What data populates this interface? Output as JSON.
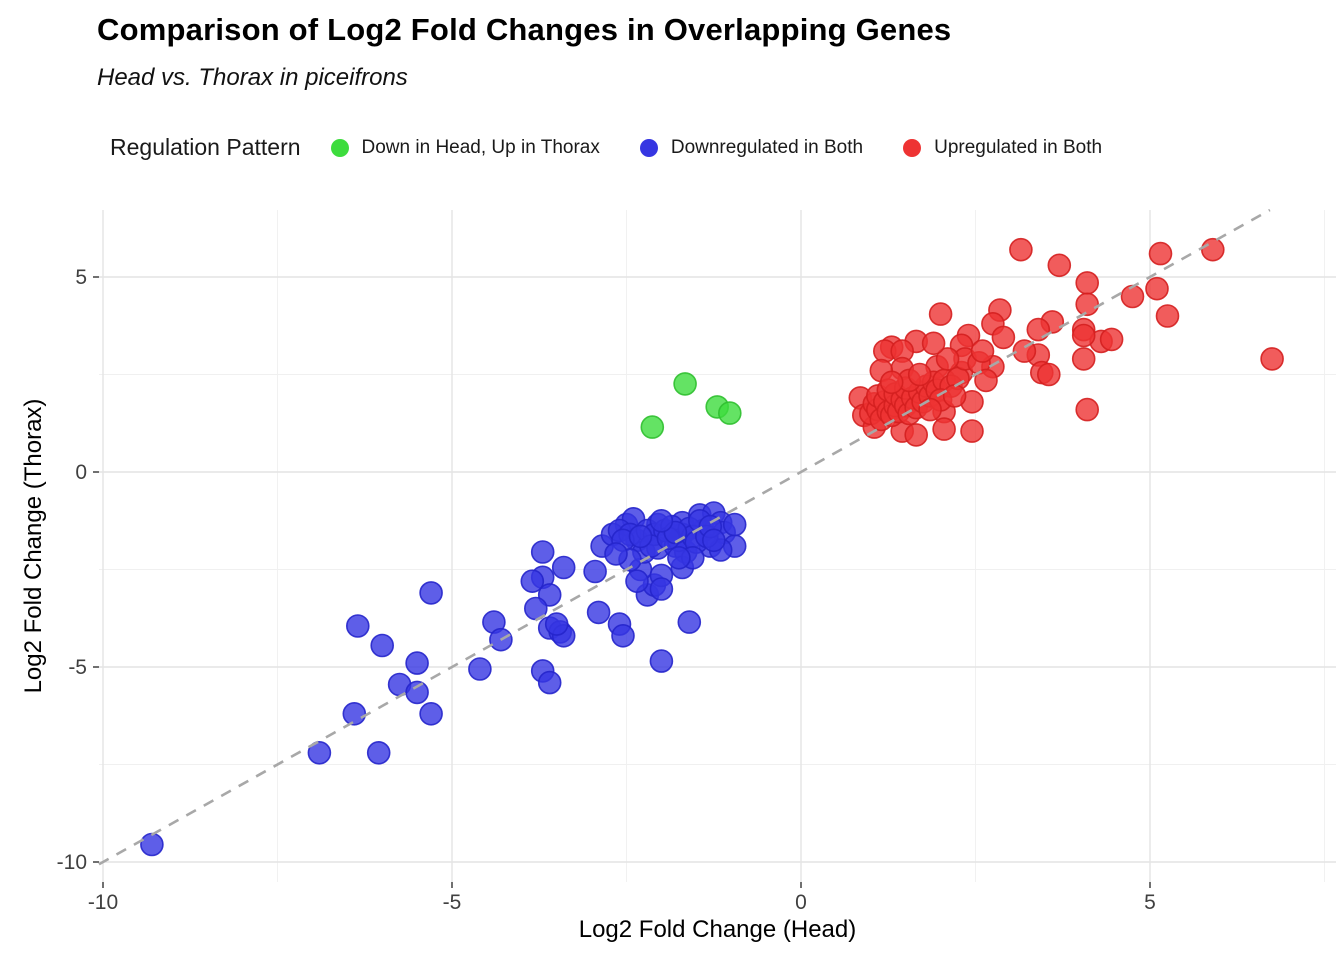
{
  "header": {
    "title": "Comparison of Log2 Fold Changes in Overlapping Genes",
    "subtitle": "Head vs. Thorax in piceifrons"
  },
  "legend": {
    "title": "Regulation Pattern",
    "items": [
      {
        "label": "Down in Head, Up in Thorax",
        "color": "#3ddc3d"
      },
      {
        "label": "Downregulated in Both",
        "color": "#3636e2"
      },
      {
        "label": "Upregulated in Both",
        "color": "#ee3333"
      }
    ]
  },
  "chart_data": {
    "type": "scatter",
    "title": "Comparison of Log2 Fold Changes in Overlapping Genes",
    "subtitle": "Head vs. Thorax in piceifrons",
    "xlabel": "Log2 Fold Change (Head)",
    "ylabel": "Log2 Fold Change (Thorax)",
    "xlim": [
      -10.1,
      7.7
    ],
    "ylim": [
      -10.5,
      6.7
    ],
    "x_ticks": [
      -10,
      -5,
      0,
      5
    ],
    "y_ticks": [
      -10,
      -5,
      0,
      5
    ],
    "x_minor_ticks": [
      -7.5,
      -2.5,
      2.5,
      7.5
    ],
    "y_minor_ticks": [
      -7.5,
      -2.5,
      2.5
    ],
    "grid": true,
    "legend_position": "top",
    "reference_line": {
      "kind": "identity y=x",
      "style": "dashed",
      "color": "#a8a8a8"
    },
    "colors": {
      "major_grid": "#e4e4e4",
      "minor_grid": "#f0f0f0",
      "tick_text": "#404040"
    },
    "series": [
      {
        "name": "Down in Head, Up in Thorax",
        "color": "#3ddc3d",
        "edge": "#2fbf2f",
        "points": [
          [
            -1.66,
            2.26
          ],
          [
            -1.2,
            1.67
          ],
          [
            -1.02,
            1.51
          ],
          [
            -2.13,
            1.15
          ]
        ]
      },
      {
        "name": "Downregulated in Both",
        "color": "#3636e2",
        "edge": "#2525cb",
        "points": [
          [
            -9.3,
            -9.55
          ],
          [
            -6.9,
            -7.2
          ],
          [
            -6.05,
            -7.2
          ],
          [
            -6.4,
            -6.2
          ],
          [
            -5.3,
            -6.2
          ],
          [
            -6.35,
            -3.95
          ],
          [
            -6.0,
            -4.45
          ],
          [
            -5.5,
            -4.9
          ],
          [
            -5.75,
            -5.45
          ],
          [
            -5.5,
            -5.65
          ],
          [
            -5.3,
            -3.1
          ],
          [
            -4.6,
            -5.05
          ],
          [
            -4.4,
            -3.85
          ],
          [
            -4.3,
            -4.3
          ],
          [
            -3.7,
            -2.05
          ],
          [
            -3.7,
            -2.7
          ],
          [
            -3.85,
            -2.8
          ],
          [
            -3.6,
            -3.15
          ],
          [
            -3.8,
            -3.5
          ],
          [
            -3.6,
            -4.0
          ],
          [
            -3.45,
            -4.1
          ],
          [
            -3.7,
            -5.1
          ],
          [
            -3.6,
            -5.4
          ],
          [
            -3.4,
            -4.2
          ],
          [
            -3.5,
            -3.9
          ],
          [
            -2.9,
            -3.6
          ],
          [
            -2.6,
            -3.9
          ],
          [
            -2.55,
            -4.2
          ],
          [
            -2.2,
            -3.15
          ],
          [
            -2.1,
            -2.9
          ],
          [
            -1.6,
            -3.85
          ],
          [
            -2.0,
            -4.85
          ],
          [
            -3.4,
            -2.45
          ],
          [
            -2.95,
            -2.55
          ],
          [
            -2.85,
            -1.9
          ],
          [
            -2.5,
            -1.35
          ],
          [
            -2.4,
            -1.2
          ],
          [
            -2.35,
            -1.75
          ],
          [
            -2.3,
            -2.5
          ],
          [
            -2.25,
            -2.05
          ],
          [
            -2.05,
            -1.95
          ],
          [
            -2.05,
            -1.35
          ],
          [
            -2.0,
            -2.65
          ],
          [
            -2.0,
            -3.0
          ],
          [
            -2.35,
            -2.8
          ],
          [
            -1.7,
            -1.3
          ],
          [
            -1.7,
            -1.6
          ],
          [
            -1.8,
            -1.9
          ],
          [
            -1.65,
            -2.05
          ],
          [
            -1.7,
            -2.45
          ],
          [
            -1.45,
            -1.1
          ],
          [
            -1.4,
            -1.5
          ],
          [
            -1.3,
            -1.9
          ],
          [
            -1.25,
            -1.05
          ],
          [
            -1.15,
            -1.3
          ],
          [
            -1.1,
            -1.55
          ],
          [
            -0.95,
            -1.9
          ],
          [
            -1.15,
            -2.0
          ],
          [
            -0.95,
            -1.35
          ],
          [
            -2.7,
            -1.6
          ],
          [
            -2.6,
            -1.5
          ],
          [
            -2.45,
            -1.6
          ],
          [
            -2.2,
            -1.5
          ],
          [
            -2.1,
            -1.6
          ],
          [
            -1.95,
            -1.5
          ],
          [
            -1.85,
            -1.4
          ],
          [
            -1.75,
            -1.75
          ],
          [
            -1.6,
            -1.45
          ],
          [
            -1.55,
            -1.65
          ],
          [
            -1.5,
            -1.8
          ],
          [
            -1.45,
            -1.25
          ],
          [
            -1.35,
            -1.65
          ],
          [
            -1.3,
            -1.4
          ],
          [
            -2.15,
            -1.9
          ],
          [
            -1.9,
            -1.7
          ],
          [
            -1.8,
            -1.55
          ],
          [
            -2.0,
            -1.25
          ],
          [
            -2.55,
            -1.75
          ],
          [
            -2.3,
            -1.65
          ],
          [
            -1.25,
            -1.75
          ],
          [
            -1.55,
            -2.2
          ],
          [
            -1.75,
            -2.2
          ],
          [
            -2.45,
            -2.25
          ],
          [
            -2.65,
            -2.1
          ]
        ]
      },
      {
        "name": "Upregulated in Both",
        "color": "#ee3333",
        "edge": "#d41f1f",
        "points": [
          [
            3.15,
            5.7
          ],
          [
            3.7,
            5.3
          ],
          [
            5.15,
            5.6
          ],
          [
            5.9,
            5.7
          ],
          [
            4.1,
            4.85
          ],
          [
            4.1,
            4.3
          ],
          [
            5.1,
            4.7
          ],
          [
            4.75,
            4.5
          ],
          [
            5.25,
            4.0
          ],
          [
            2.0,
            4.05
          ],
          [
            3.6,
            3.85
          ],
          [
            3.4,
            3.65
          ],
          [
            2.85,
            4.15
          ],
          [
            2.75,
            3.8
          ],
          [
            2.9,
            3.45
          ],
          [
            2.4,
            3.5
          ],
          [
            1.65,
            3.35
          ],
          [
            1.3,
            3.2
          ],
          [
            1.2,
            3.1
          ],
          [
            1.45,
            3.1
          ],
          [
            2.3,
            3.25
          ],
          [
            4.05,
            3.65
          ],
          [
            4.3,
            3.35
          ],
          [
            4.45,
            3.4
          ],
          [
            4.05,
            3.5
          ],
          [
            4.05,
            2.9
          ],
          [
            3.4,
            3.0
          ],
          [
            3.2,
            3.1
          ],
          [
            3.45,
            2.55
          ],
          [
            3.55,
            2.5
          ],
          [
            2.75,
            2.7
          ],
          [
            6.75,
            2.9
          ],
          [
            4.1,
            1.6
          ],
          [
            1.95,
            2.7
          ],
          [
            2.3,
            2.55
          ],
          [
            1.45,
            2.65
          ],
          [
            1.15,
            2.6
          ],
          [
            2.45,
            1.8
          ],
          [
            2.05,
            1.55
          ],
          [
            2.05,
            1.1
          ],
          [
            2.45,
            1.05
          ],
          [
            1.45,
            1.05
          ],
          [
            1.65,
            0.95
          ],
          [
            0.85,
            1.9
          ],
          [
            0.9,
            1.45
          ],
          [
            1.05,
            1.15
          ],
          [
            1.0,
            1.5
          ],
          [
            1.05,
            1.75
          ],
          [
            1.1,
            1.6
          ],
          [
            1.1,
            1.95
          ],
          [
            1.15,
            1.35
          ],
          [
            1.2,
            1.8
          ],
          [
            1.25,
            1.55
          ],
          [
            1.25,
            2.1
          ],
          [
            1.3,
            1.45
          ],
          [
            1.35,
            1.7
          ],
          [
            1.35,
            2.0
          ],
          [
            1.4,
            1.55
          ],
          [
            1.45,
            1.85
          ],
          [
            1.5,
            1.7
          ],
          [
            1.5,
            2.15
          ],
          [
            1.55,
            1.5
          ],
          [
            1.6,
            1.9
          ],
          [
            1.65,
            1.65
          ],
          [
            1.7,
            2.05
          ],
          [
            1.75,
            1.8
          ],
          [
            1.8,
            2.2
          ],
          [
            1.85,
            1.95
          ],
          [
            1.9,
            2.3
          ],
          [
            1.95,
            2.1
          ],
          [
            2.05,
            2.35
          ],
          [
            2.15,
            2.2
          ],
          [
            2.25,
            2.4
          ],
          [
            1.55,
            2.35
          ],
          [
            1.3,
            2.3
          ],
          [
            1.7,
            2.5
          ],
          [
            2.0,
            1.85
          ],
          [
            2.2,
            1.95
          ],
          [
            1.85,
            1.6
          ],
          [
            2.35,
            2.9
          ],
          [
            2.55,
            2.8
          ],
          [
            2.6,
            3.1
          ],
          [
            2.1,
            2.9
          ],
          [
            1.9,
            3.3
          ],
          [
            2.65,
            2.35
          ]
        ]
      }
    ]
  }
}
